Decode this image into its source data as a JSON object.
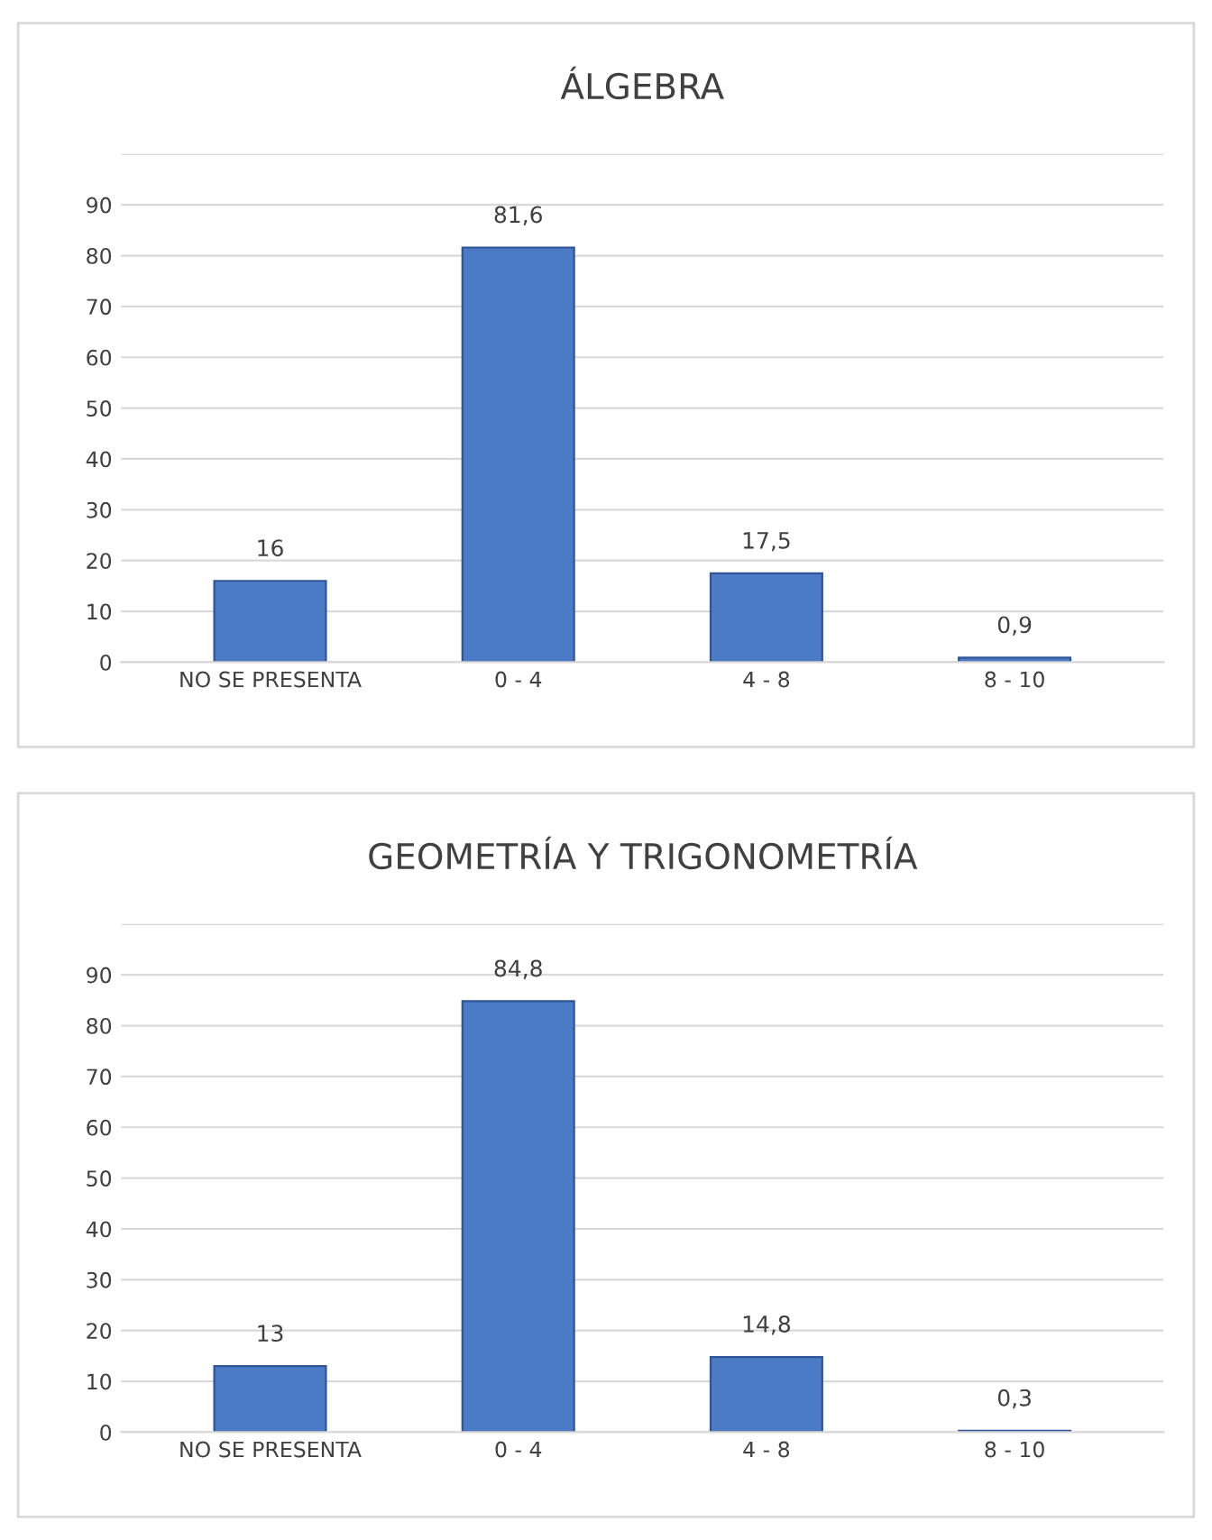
{
  "chart_data": [
    {
      "type": "bar",
      "title": "ÁLGEBRA",
      "categories": [
        "NO SE PRESENTA",
        "0 - 4",
        "4 - 8",
        "8 - 10"
      ],
      "values": [
        16,
        81.6,
        17.5,
        0.9
      ],
      "value_labels": [
        "16",
        "81,6",
        "17,5",
        "0,9"
      ],
      "color": "#4a7bc4",
      "ylim": [
        0,
        100
      ],
      "yticks": [
        0,
        10,
        20,
        30,
        40,
        50,
        60,
        70,
        80,
        90,
        {
          "value": 100,
          "label": null
        }
      ],
      "grid": "y",
      "legend": false
    },
    {
      "type": "bar",
      "title": "GEOMETRÍA Y TRIGONOMETRÍA",
      "categories": [
        "NO SE PRESENTA",
        "0 - 4",
        "4 - 8",
        "8 - 10"
      ],
      "values": [
        13,
        84.8,
        14.8,
        0.3
      ],
      "value_labels": [
        "13",
        "84,8",
        "14,8",
        "0,3"
      ],
      "color": "#4a7bc4",
      "ylim": [
        0,
        100
      ],
      "yticks": [
        0,
        10,
        20,
        30,
        40,
        50,
        60,
        70,
        80,
        90,
        {
          "value": 100,
          "label": null
        }
      ],
      "grid": "y",
      "legend": false
    }
  ]
}
